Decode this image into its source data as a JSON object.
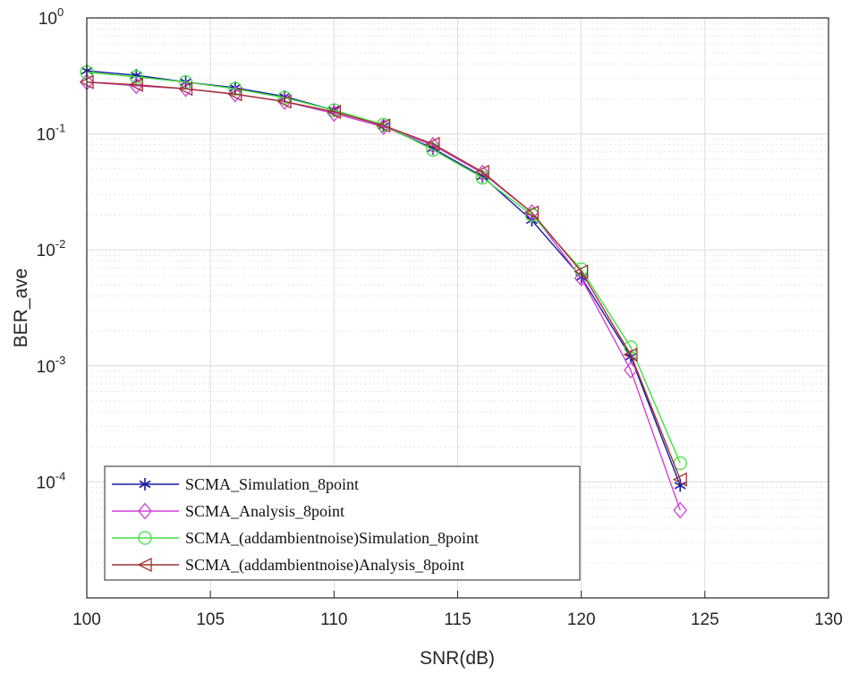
{
  "chart_data": {
    "type": "line",
    "title": "",
    "xlabel": "SNR(dB)",
    "ylabel": "BER_ave",
    "xscale": "linear",
    "yscale": "log",
    "xlim": [
      100,
      130
    ],
    "ylim": [
      1e-05,
      1
    ],
    "grid": true,
    "legend_position": "bottom-left",
    "x_ticks": [
      100,
      105,
      110,
      115,
      120,
      125,
      130
    ],
    "y_ticks": [
      {
        "exp": "0"
      },
      {
        "exp": "-1"
      },
      {
        "exp": "-2"
      },
      {
        "exp": "-3"
      },
      {
        "exp": "-4"
      }
    ],
    "x": [
      100,
      102,
      104,
      106,
      108,
      110,
      112,
      114,
      116,
      118,
      120,
      122,
      124
    ],
    "series": [
      {
        "name": "SCMA_Simulation_8point",
        "color": "#1a1aa0",
        "marker": "star",
        "values": [
          0.35,
          0.32,
          0.28,
          0.25,
          0.21,
          0.16,
          0.117,
          0.075,
          0.043,
          0.018,
          0.0058,
          0.0012,
          9.3e-05
        ]
      },
      {
        "name": "SCMA_Analysis_8point",
        "color": "#d040d8",
        "marker": "diamond",
        "values": [
          0.28,
          0.26,
          0.245,
          0.22,
          0.19,
          0.15,
          0.115,
          0.08,
          0.046,
          0.021,
          0.0057,
          0.00092,
          5.7e-05
        ]
      },
      {
        "name": "SCMA_(addambientnoise)Simulation_8point",
        "color": "#44dd44",
        "marker": "circle",
        "values": [
          0.34,
          0.31,
          0.28,
          0.245,
          0.205,
          0.16,
          0.12,
          0.073,
          0.042,
          0.02,
          0.0068,
          0.00145,
          0.000145
        ]
      },
      {
        "name": "SCMA_(addambientnoise)Analysis_8point",
        "color": "#a03030",
        "marker": "triangle-left",
        "values": [
          0.28,
          0.265,
          0.245,
          0.22,
          0.19,
          0.155,
          0.118,
          0.082,
          0.047,
          0.021,
          0.0065,
          0.00125,
          0.000105
        ]
      }
    ]
  }
}
